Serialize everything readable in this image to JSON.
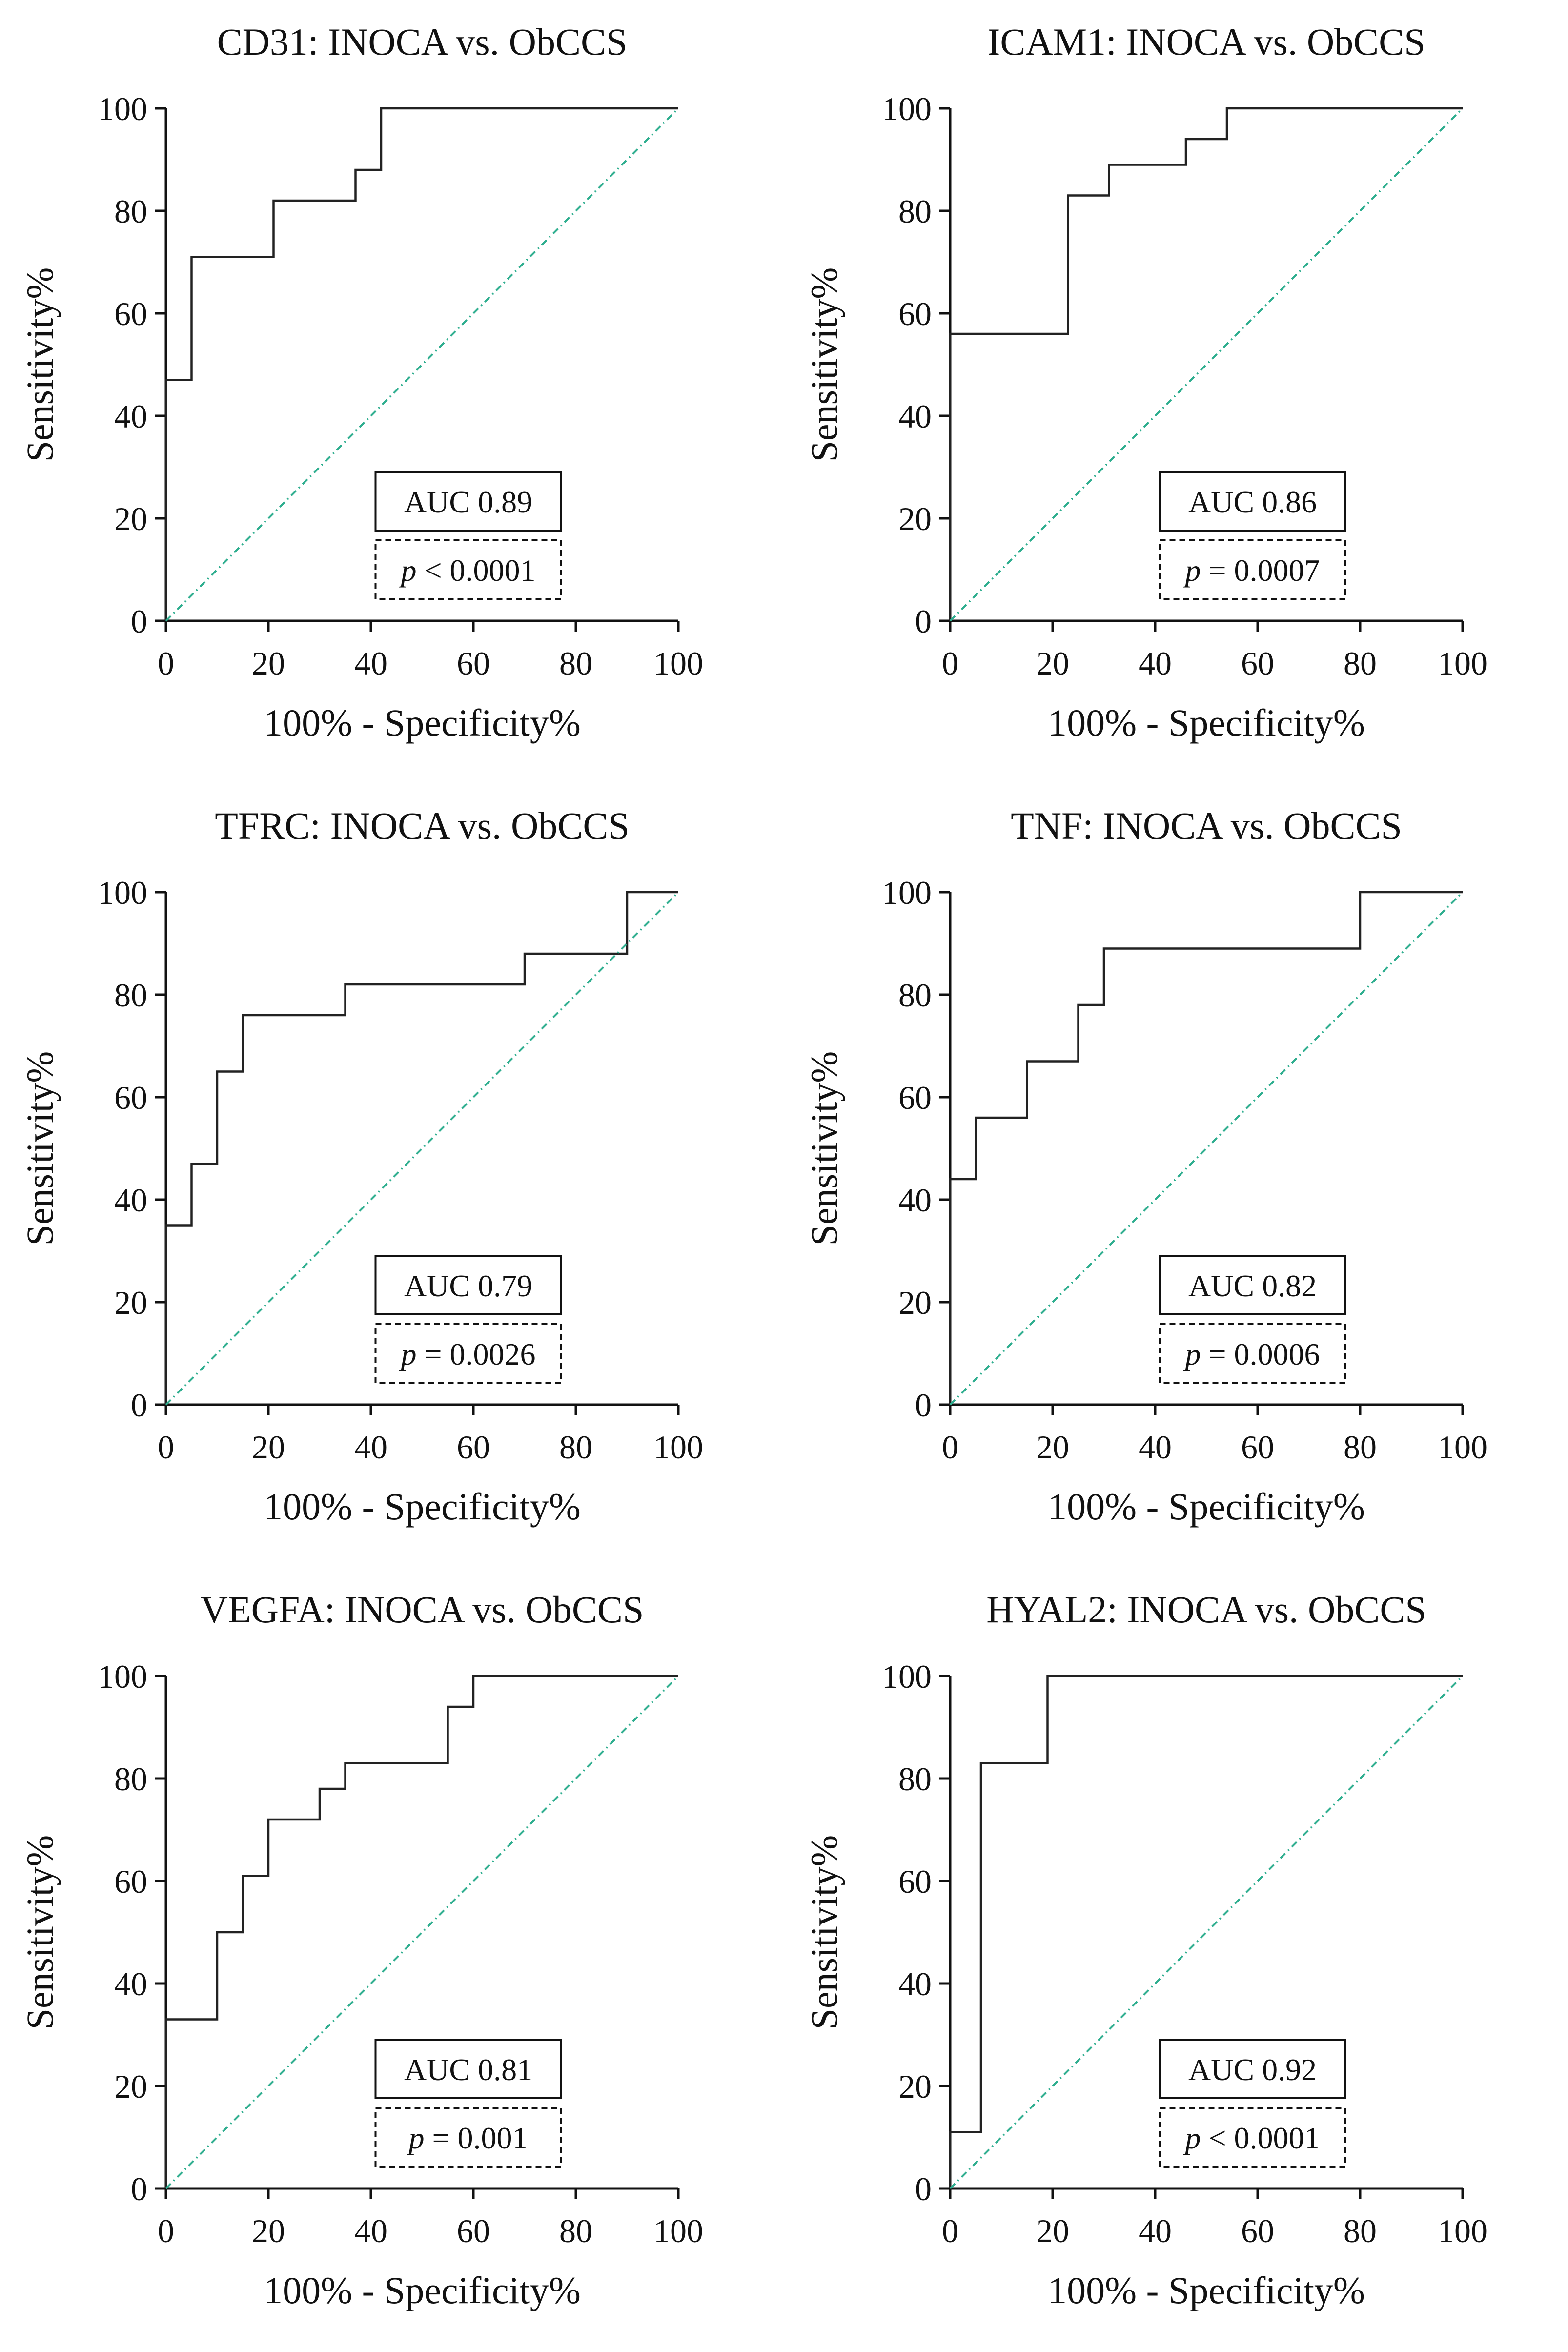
{
  "figure": {
    "colors": {
      "roc": "#222222",
      "reference": "#2fae8f",
      "axis": "#111111"
    },
    "xlabel": "100% - Specificity%",
    "ylabel": "Sensitivity%",
    "ticks": [
      "0",
      "20",
      "40",
      "60",
      "80",
      "100"
    ]
  },
  "chart_data": [
    {
      "type": "line",
      "title": "CD31: INOCA vs. ObCCS",
      "xlabel": "100% - Specificity%",
      "ylabel": "Sensitivity%",
      "xlim": [
        0,
        100
      ],
      "ylim": [
        0,
        100
      ],
      "auc_label": "AUC 0.89",
      "p_symbol": "p",
      "p_text": " < 0.0001",
      "series": [
        {
          "name": "ROC",
          "x": [
            0,
            0,
            5,
            5,
            21,
            21,
            37,
            37,
            42,
            42,
            100
          ],
          "y": [
            0,
            47,
            47,
            71,
            71,
            82,
            82,
            88,
            88,
            100,
            100
          ]
        },
        {
          "name": "Reference line",
          "x": [
            0,
            100
          ],
          "y": [
            0,
            100
          ]
        }
      ]
    },
    {
      "type": "line",
      "title": "ICAM1: INOCA vs. ObCCS",
      "xlabel": "100% - Specificity%",
      "ylabel": "Sensitivity%",
      "xlim": [
        0,
        100
      ],
      "ylim": [
        0,
        100
      ],
      "auc_label": "AUC 0.86",
      "p_symbol": "p",
      "p_text": " = 0.0007",
      "series": [
        {
          "name": "ROC",
          "x": [
            0,
            0,
            23,
            23,
            31,
            31,
            46,
            46,
            54,
            54,
            100
          ],
          "y": [
            0,
            56,
            56,
            83,
            83,
            89,
            89,
            94,
            94,
            100,
            100
          ]
        },
        {
          "name": "Reference line",
          "x": [
            0,
            100
          ],
          "y": [
            0,
            100
          ]
        }
      ]
    },
    {
      "type": "line",
      "title": "TFRC: INOCA vs. ObCCS",
      "xlabel": "100% - Specificity%",
      "ylabel": "Sensitivity%",
      "xlim": [
        0,
        100
      ],
      "ylim": [
        0,
        100
      ],
      "auc_label": "AUC 0.79",
      "p_symbol": "p",
      "p_text": " = 0.0026",
      "series": [
        {
          "name": "ROC",
          "x": [
            0,
            0,
            5,
            5,
            10,
            10,
            15,
            15,
            35,
            35,
            70,
            70,
            90,
            90,
            100
          ],
          "y": [
            0,
            35,
            35,
            47,
            47,
            65,
            65,
            76,
            76,
            82,
            82,
            88,
            88,
            100,
            100
          ]
        },
        {
          "name": "Reference line",
          "x": [
            0,
            100
          ],
          "y": [
            0,
            100
          ]
        }
      ]
    },
    {
      "type": "line",
      "title": "TNF: INOCA vs. ObCCS",
      "xlabel": "100% - Specificity%",
      "ylabel": "Sensitivity%",
      "xlim": [
        0,
        100
      ],
      "ylim": [
        0,
        100
      ],
      "auc_label": "AUC 0.82",
      "p_symbol": "p",
      "p_text": " = 0.0006",
      "series": [
        {
          "name": "ROC",
          "x": [
            0,
            0,
            5,
            5,
            15,
            15,
            25,
            25,
            30,
            30,
            80,
            80,
            100
          ],
          "y": [
            0,
            44,
            44,
            56,
            56,
            67,
            67,
            78,
            78,
            89,
            89,
            100,
            100
          ]
        },
        {
          "name": "Reference line",
          "x": [
            0,
            100
          ],
          "y": [
            0,
            100
          ]
        }
      ]
    },
    {
      "type": "line",
      "title": "VEGFA: INOCA vs. ObCCS",
      "xlabel": "100% - Specificity%",
      "ylabel": "Sensitivity%",
      "xlim": [
        0,
        100
      ],
      "ylim": [
        0,
        100
      ],
      "auc_label": "AUC 0.81",
      "p_symbol": "p",
      "p_text": " = 0.001",
      "series": [
        {
          "name": "ROC",
          "x": [
            0,
            0,
            10,
            10,
            15,
            15,
            20,
            20,
            30,
            30,
            35,
            35,
            55,
            55,
            60,
            60,
            100
          ],
          "y": [
            0,
            33,
            33,
            50,
            50,
            61,
            61,
            72,
            72,
            78,
            78,
            83,
            83,
            94,
            94,
            100,
            100
          ]
        },
        {
          "name": "Reference line",
          "x": [
            0,
            100
          ],
          "y": [
            0,
            100
          ]
        }
      ]
    },
    {
      "type": "line",
      "title": "HYAL2: INOCA vs. ObCCS",
      "xlabel": "100% - Specificity%",
      "ylabel": "Sensitivity%",
      "xlim": [
        0,
        100
      ],
      "ylim": [
        0,
        100
      ],
      "auc_label": "AUC 0.92",
      "p_symbol": "p",
      "p_text": " < 0.0001",
      "series": [
        {
          "name": "ROC",
          "x": [
            0,
            0,
            6,
            6,
            19,
            19,
            100
          ],
          "y": [
            0,
            11,
            11,
            83,
            83,
            100,
            100
          ]
        },
        {
          "name": "Reference line",
          "x": [
            0,
            100
          ],
          "y": [
            0,
            100
          ]
        }
      ]
    }
  ]
}
